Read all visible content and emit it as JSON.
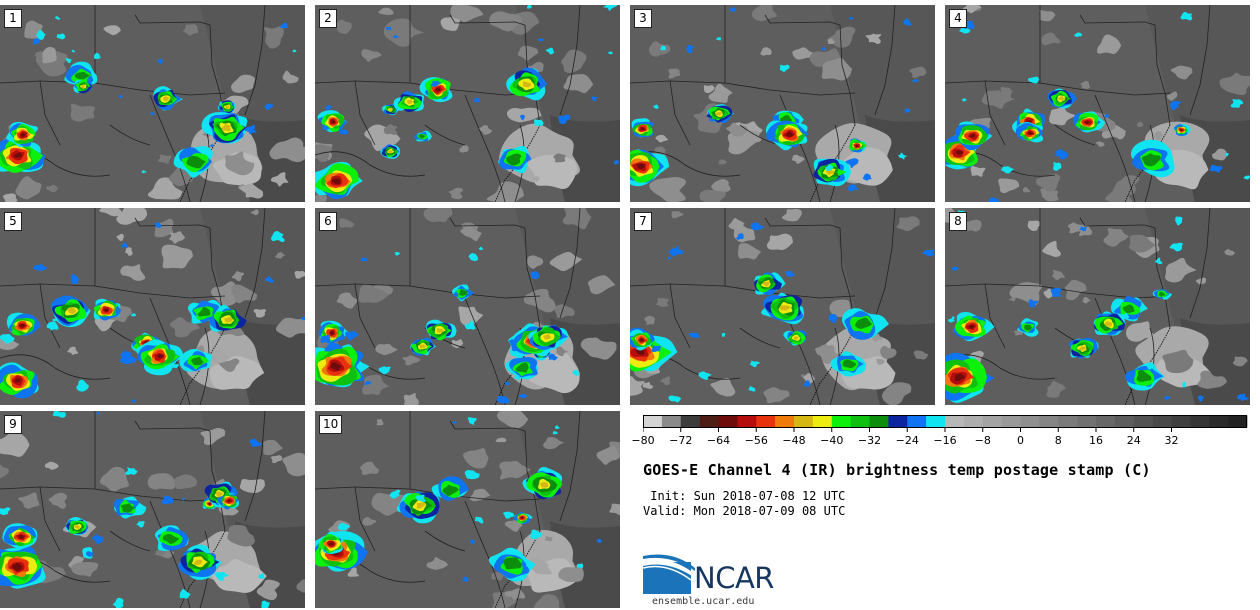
{
  "panels": [
    {
      "label": "1"
    },
    {
      "label": "2"
    },
    {
      "label": "3"
    },
    {
      "label": "4"
    },
    {
      "label": "5"
    },
    {
      "label": "6"
    },
    {
      "label": "7"
    },
    {
      "label": "8"
    },
    {
      "label": "9"
    },
    {
      "label": "10"
    }
  ],
  "colorbar": {
    "ticks": [
      "−80",
      "−72",
      "−64",
      "−56",
      "−48",
      "−40",
      "−32",
      "−24",
      "−16",
      "−8",
      "0",
      "8",
      "16",
      "24",
      "32"
    ],
    "colors": [
      "#d4d4d4",
      "#8a8a8a",
      "#3c3c3c",
      "#4e1d16",
      "#6e0c0c",
      "#b50d0d",
      "#e8320d",
      "#f07a0a",
      "#d6b814",
      "#ecec10",
      "#0cf00c",
      "#10c010",
      "#0c8e0c",
      "#0d24a0",
      "#0e74f2",
      "#10e4f0",
      "#b7b7b7",
      "#adadad",
      "#a3a3a3",
      "#999999",
      "#8f8f8f",
      "#858585",
      "#7b7b7b",
      "#717171",
      "#676767",
      "#5d5d5d",
      "#535353",
      "#494949",
      "#3f3f3f",
      "#353535",
      "#2b2b2b",
      "#222222"
    ]
  },
  "title": "GOES-E Channel 4 (IR) brightness temp postage stamp (C)",
  "init": " Init: Sun 2018-07-08 12 UTC",
  "valid": "Valid: Mon 2018-07-09 08 UTC",
  "logo": {
    "name": "NCAR",
    "url": "ensemble.ucar.edu",
    "color": "#16365f",
    "accent": "#1b74b9"
  }
}
